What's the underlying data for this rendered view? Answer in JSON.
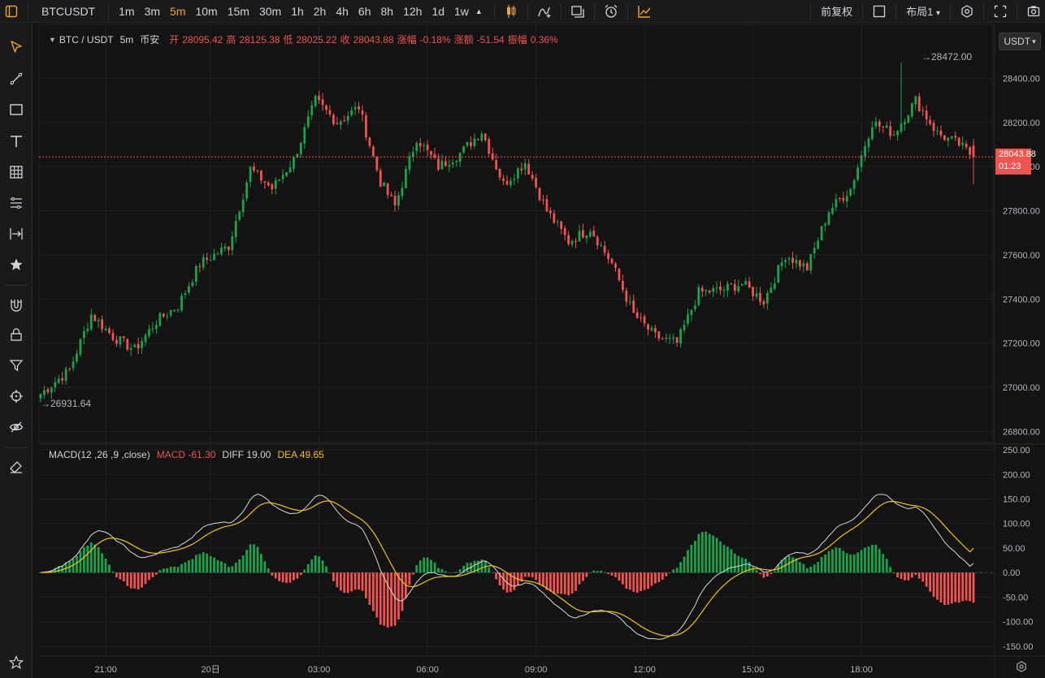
{
  "toolbar": {
    "symbol": "BTCUSDT",
    "intervals": [
      "1m",
      "3m",
      "5m",
      "10m",
      "15m",
      "30m",
      "1h",
      "2h",
      "4h",
      "6h",
      "8h",
      "12h",
      "1d",
      "1w"
    ],
    "active_interval": "5m",
    "adjust_label": "前复权",
    "layout_label": "布局1"
  },
  "legend": {
    "pair": "BTC / USDT",
    "interval": "5m",
    "exchange": "币安",
    "open_label": "开",
    "open": "28095.42",
    "high_label": "高",
    "high": "28125.38",
    "low_label": "低",
    "low": "28025.22",
    "close_label": "收",
    "close": "28043.88",
    "change_pct_label": "涨幅",
    "change_pct": "-0.18%",
    "change_label": "涨额",
    "change": "-51.54",
    "amp_label": "振幅",
    "amp": "0.36%"
  },
  "macd_legend": {
    "name": "MACD(12 ,26 ,9 ,close)",
    "macd": "MACD -61.30",
    "diff": "DIFF 19.00",
    "dea": "DEA 49.65"
  },
  "scale": {
    "currency_button": "USDT"
  },
  "price_tag": {
    "price": "28043.88",
    "countdown": "01:23"
  },
  "annotations": {
    "high_marker": "28472.00",
    "low_marker": "26931.64"
  },
  "colors": {
    "up": "#1aa34a",
    "down": "#f05350",
    "diff": "#d9d9d9",
    "dea": "#f2c30f",
    "accent": "#f0a238"
  },
  "chart_data": [
    {
      "type": "candlestick",
      "title": "BTC / USDT 5m",
      "ylim": [
        26750,
        28600
      ],
      "y_ticks": [
        26800,
        27000,
        27200,
        27400,
        27600,
        27800,
        28000,
        28200,
        28400
      ],
      "y_tick_labels": [
        "26800.00",
        "27000.00",
        "27200.00",
        "27400.00",
        "27600.00",
        "27800.00",
        "28000.00",
        "28200.00",
        "28400.00"
      ],
      "x_tick_labels": [
        "21:00",
        "20日",
        "03:00",
        "06:00",
        "09:00",
        "12:00",
        "15:00",
        "18:00"
      ],
      "anchors": [
        [
          0,
          26970
        ],
        [
          8,
          27080
        ],
        [
          14,
          27330
        ],
        [
          20,
          27230
        ],
        [
          26,
          27170
        ],
        [
          32,
          27300
        ],
        [
          38,
          27370
        ],
        [
          44,
          27560
        ],
        [
          52,
          27640
        ],
        [
          58,
          27990
        ],
        [
          64,
          27900
        ],
        [
          70,
          28030
        ],
        [
          76,
          28300
        ],
        [
          82,
          28200
        ],
        [
          88,
          28270
        ],
        [
          94,
          27930
        ],
        [
          98,
          27820
        ],
        [
          104,
          28130
        ],
        [
          110,
          28000
        ],
        [
          116,
          28060
        ],
        [
          122,
          28160
        ],
        [
          128,
          27920
        ],
        [
          134,
          28020
        ],
        [
          140,
          27800
        ],
        [
          146,
          27660
        ],
        [
          152,
          27720
        ],
        [
          158,
          27560
        ],
        [
          164,
          27330
        ],
        [
          170,
          27230
        ],
        [
          176,
          27200
        ],
        [
          182,
          27430
        ],
        [
          188,
          27440
        ],
        [
          194,
          27470
        ],
        [
          200,
          27390
        ],
        [
          206,
          27600
        ],
        [
          212,
          27540
        ],
        [
          218,
          27800
        ],
        [
          224,
          27900
        ],
        [
          230,
          28200
        ],
        [
          236,
          28150
        ],
        [
          242,
          28300
        ],
        [
          248,
          28150
        ],
        [
          254,
          28100
        ],
        [
          258,
          28043.88
        ]
      ],
      "candle_count": 259,
      "last": {
        "open": 28095.42,
        "high": 28125.38,
        "low": 28025.22,
        "close": 28043.88
      },
      "max_marker": 28472.0,
      "min_marker": 26931.64
    },
    {
      "type": "bar",
      "title": "MACD(12 ,26 ,9 ,close)",
      "ylim": [
        -170,
        260
      ],
      "y_ticks": [
        -150,
        -100,
        -50,
        0,
        50,
        100,
        150,
        200,
        250
      ],
      "y_tick_labels": [
        "-150.00",
        "-100.00",
        "-50.00",
        "0.00",
        "50.00",
        "100.00",
        "150.00",
        "200.00",
        "250.00"
      ],
      "series": [
        {
          "name": "MACD",
          "current": -61.3
        },
        {
          "name": "DIFF",
          "current": 19.0
        },
        {
          "name": "DEA",
          "current": 49.65
        }
      ]
    }
  ]
}
